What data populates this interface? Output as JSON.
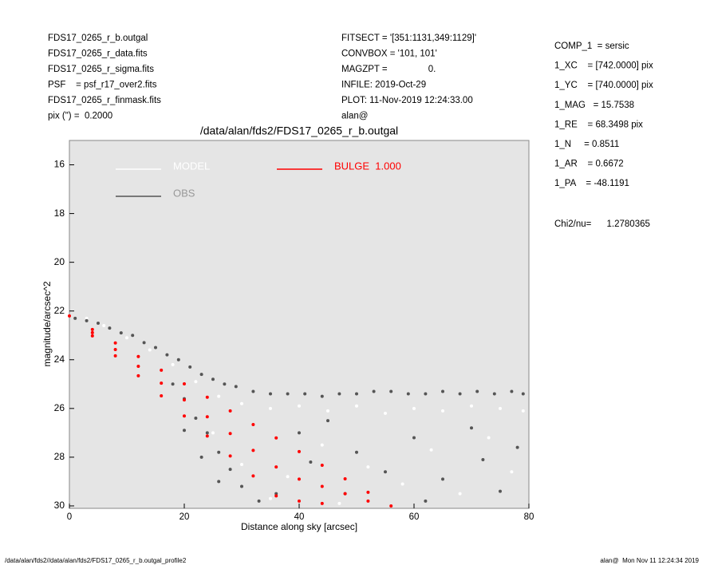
{
  "header": {
    "left": [
      "FDS17_0265_r_b.outgal",
      "FDS17_0265_r_data.fits",
      "FDS17_0265_r_sigma.fits",
      "PSF    = psf_r17_over2.fits",
      "FDS17_0265_r_finmask.fits",
      "pix (\") =  0.2000"
    ],
    "center": [
      "FITSECT = '[351:1131,349:1129]'",
      "CONVBOX = '101, 101'",
      "MAGZPT =                0.",
      "INFILE: 2019-Oct-29",
      "PLOT: 11-Nov-2019 12:24:33.00",
      "alan@"
    ],
    "right": [
      "COMP_1  = sersic",
      "1_XC    = [742.0000] pix",
      "1_YC    = [740.0000] pix",
      "1_MAG   = 15.7538",
      "1_RE    = 68.3498 pix",
      "1_N     = 0.8511",
      "1_AR    = 0.6672",
      "1_PA    = -48.1191"
    ],
    "fit": "Chi2/nu=      1.2780365"
  },
  "footer": {
    "left": "/data/alan/fds2//data/alan/fds2/FDS17_0265_r_b.outgal_profile2",
    "right": "alan@  Mon Nov 11 12:24:34 2019"
  },
  "chart_data": {
    "type": "scatter",
    "title": "/data/alan/fds2/FDS17_0265_r_b.outgal",
    "x_label": "Distance along sky [arcsec]",
    "y_label": "magnitude/arcsec^2",
    "xlim": [
      0,
      80
    ],
    "ylim": [
      30.1,
      15
    ],
    "xticks": [
      0,
      20,
      40,
      60,
      80
    ],
    "yticks": [
      16,
      18,
      20,
      22,
      24,
      26,
      28,
      30
    ],
    "background": "#e5e5e5",
    "series": [
      {
        "name": "MODEL",
        "color": "#ffffff",
        "x": [
          3,
          6,
          10,
          14,
          18,
          22,
          26,
          30,
          35,
          40,
          45,
          50,
          55,
          60,
          65,
          70,
          75,
          79,
          25,
          30,
          38,
          44,
          52,
          58,
          63,
          68,
          73,
          77,
          35,
          47
        ],
        "y": [
          22.3,
          22.6,
          23.1,
          23.6,
          24.2,
          24.9,
          25.5,
          25.8,
          26.0,
          25.9,
          26.1,
          25.9,
          26.2,
          26.0,
          26.1,
          25.9,
          26.0,
          26.1,
          27.0,
          28.3,
          28.8,
          27.5,
          28.4,
          29.1,
          27.7,
          29.5,
          27.2,
          28.6,
          29.7,
          29.9
        ]
      },
      {
        "name": "OBS",
        "color": "#555555",
        "x": [
          1,
          3,
          5,
          7,
          9,
          11,
          13,
          15,
          17,
          19,
          21,
          23,
          25,
          27,
          29,
          32,
          35,
          38,
          41,
          44,
          47,
          50,
          53,
          56,
          59,
          62,
          65,
          68,
          71,
          74,
          77,
          79,
          18,
          20,
          22,
          24,
          26,
          28,
          30,
          33,
          36,
          20,
          23,
          26,
          45,
          50,
          55,
          60,
          65,
          70,
          75,
          78,
          48,
          62,
          72,
          40,
          42
        ],
        "y": [
          22.3,
          22.4,
          22.5,
          22.7,
          22.9,
          23.0,
          23.3,
          23.5,
          23.8,
          24.0,
          24.3,
          24.6,
          24.8,
          25.0,
          25.1,
          25.3,
          25.4,
          25.4,
          25.4,
          25.5,
          25.4,
          25.4,
          25.3,
          25.3,
          25.4,
          25.4,
          25.3,
          25.4,
          25.3,
          25.4,
          25.3,
          25.4,
          25.0,
          25.6,
          26.4,
          27.0,
          27.8,
          28.5,
          29.2,
          29.8,
          29.5,
          26.9,
          28.0,
          29.0,
          26.5,
          27.8,
          28.6,
          27.2,
          28.9,
          26.8,
          29.4,
          27.6,
          29.5,
          29.8,
          28.1,
          27.0,
          28.2
        ]
      },
      {
        "name": "BULGE  1.000",
        "color": "#ff0000",
        "x": [
          0,
          4,
          4,
          4,
          8,
          8,
          8,
          12,
          12,
          12,
          16,
          16,
          16,
          20,
          20,
          20,
          24,
          24,
          24,
          28,
          28,
          28,
          32,
          32,
          32,
          36,
          36,
          36,
          40,
          40,
          40,
          44,
          44,
          44,
          48,
          48,
          52,
          52,
          56
        ],
        "y": [
          22.2,
          22.76,
          22.89,
          23.02,
          23.31,
          23.58,
          23.84,
          23.87,
          24.27,
          24.66,
          24.43,
          24.96,
          25.48,
          24.99,
          25.65,
          26.31,
          25.54,
          26.34,
          27.13,
          26.1,
          27.03,
          27.95,
          26.66,
          27.72,
          28.77,
          27.21,
          28.4,
          29.59,
          27.77,
          28.9,
          29.8,
          28.33,
          29.2,
          29.9,
          28.89,
          29.5,
          29.44,
          29.8,
          30.0
        ]
      }
    ]
  }
}
